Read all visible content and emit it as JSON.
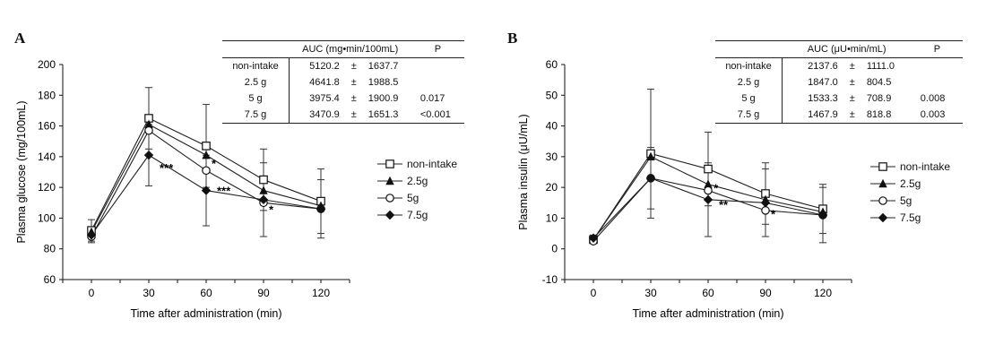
{
  "chart_data": [
    {
      "type": "line",
      "panel_label": "A",
      "x": [
        0,
        30,
        60,
        90,
        120
      ],
      "xlabel": "Time after administration (min)",
      "ylabel": "Plasma glucose (mg/100mL)",
      "ylim": [
        60,
        200
      ],
      "yticks": [
        60,
        80,
        100,
        120,
        140,
        160,
        180,
        200
      ],
      "series": [
        {
          "name": "non-intake",
          "marker": "square-open",
          "values": [
            92,
            165,
            147,
            125,
            111
          ],
          "errors": [
            7,
            20,
            27,
            20,
            21
          ]
        },
        {
          "name": "2.5g",
          "marker": "triangle-filled",
          "values": [
            91,
            161,
            141,
            118,
            108
          ],
          "errors": [
            0,
            0,
            0,
            0,
            0
          ]
        },
        {
          "name": "5g",
          "marker": "circle-open",
          "values": [
            88,
            157,
            131,
            110,
            106
          ],
          "errors": [
            0,
            0,
            0,
            0,
            0
          ]
        },
        {
          "name": "7.5g",
          "marker": "diamond-filled",
          "values": [
            89,
            141,
            118,
            112,
            106
          ],
          "errors": [
            5,
            20,
            23,
            24,
            19
          ]
        }
      ],
      "annotations": [
        {
          "text": "***",
          "x": 30,
          "y": 130
        },
        {
          "text": "*",
          "x": 60,
          "y": 133
        },
        {
          "text": "***",
          "x": 60,
          "y": 115
        },
        {
          "text": "*",
          "x": 90,
          "y": 103
        }
      ],
      "legend_position": "right",
      "auc_table": {
        "header_left": "AUC (mg•min/100mL)",
        "header_right": "P",
        "rows": [
          {
            "group": "non-intake",
            "mean": "5120.2",
            "pm": "±",
            "sd": "1637.7",
            "p": ""
          },
          {
            "group": "2.5 g",
            "mean": "4641.8",
            "pm": "±",
            "sd": "1988.5",
            "p": ""
          },
          {
            "group": "5 g",
            "mean": "3975.4",
            "pm": "±",
            "sd": "1900.9",
            "p": "0.017"
          },
          {
            "group": "7.5 g",
            "mean": "3470.9",
            "pm": "±",
            "sd": "1651.3",
            "p": "<0.001"
          }
        ]
      }
    },
    {
      "type": "line",
      "panel_label": "B",
      "x": [
        0,
        30,
        60,
        90,
        120
      ],
      "xlabel": "Time after administration (min)",
      "ylabel": "Plasma insulin (μU/mL)",
      "ylim": [
        -10,
        60
      ],
      "yticks": [
        -10,
        0,
        10,
        20,
        30,
        40,
        50,
        60
      ],
      "series": [
        {
          "name": "non-intake",
          "marker": "square-open",
          "values": [
            3,
            31,
            26,
            18,
            13
          ],
          "errors": [
            1,
            21,
            12,
            10,
            8
          ]
        },
        {
          "name": "2.5g",
          "marker": "triangle-filled",
          "values": [
            3,
            30,
            21,
            16,
            12
          ],
          "errors": [
            0,
            0,
            0,
            0,
            0
          ]
        },
        {
          "name": "5g",
          "marker": "circle-open",
          "values": [
            2.5,
            23,
            19,
            12.5,
            11
          ],
          "errors": [
            0,
            0,
            0,
            0,
            0
          ]
        },
        {
          "name": "7.5g",
          "marker": "diamond-filled",
          "values": [
            3.5,
            23,
            16,
            15,
            11
          ],
          "errors": [
            1,
            10,
            12,
            11,
            9
          ]
        }
      ],
      "annotations": [
        {
          "text": "*",
          "x": 60,
          "y": 18.5
        },
        {
          "text": "**",
          "x": 60,
          "y": 13
        },
        {
          "text": "*",
          "x": 90,
          "y": 10
        }
      ],
      "legend_position": "right",
      "auc_table": {
        "header_left": "AUC (μU•min/mL)",
        "header_right": "P",
        "rows": [
          {
            "group": "non-intake",
            "mean": "2137.6",
            "pm": "±",
            "sd": "1111.0",
            "p": ""
          },
          {
            "group": "2.5 g",
            "mean": "1847.0",
            "pm": "±",
            "sd": "804.5",
            "p": ""
          },
          {
            "group": "5 g",
            "mean": "1533.3",
            "pm": "±",
            "sd": "708.9",
            "p": "0.008"
          },
          {
            "group": "7.5 g",
            "mean": "1467.9",
            "pm": "±",
            "sd": "818.8",
            "p": "0.003"
          }
        ]
      }
    }
  ],
  "legend_labels": {
    "A": [
      "non-intake",
      "2.5g",
      "5g",
      "7.5g"
    ],
    "B": [
      "non-intake",
      "2.5g",
      "5g",
      "7.5g"
    ]
  }
}
